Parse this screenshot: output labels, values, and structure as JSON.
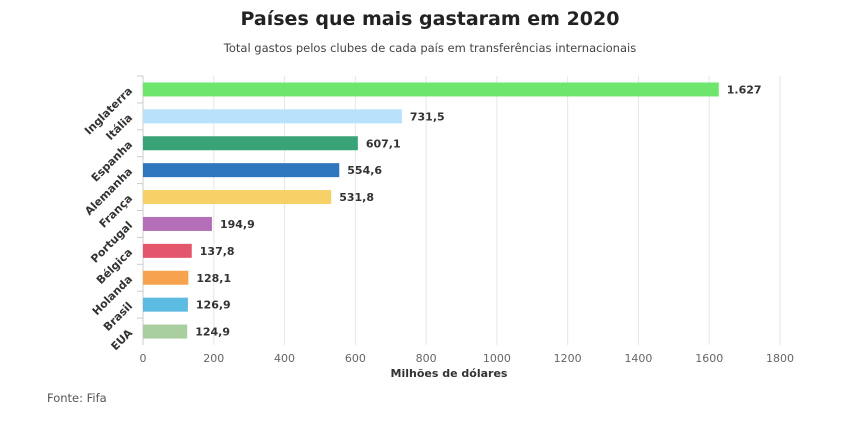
{
  "chart_data": {
    "type": "bar",
    "orientation": "horizontal",
    "title": "Países que mais gastaram em 2020",
    "subtitle": "Total gastos pelos clubes de cada país em transferências internacionais",
    "xlabel": "Milhões de dólares",
    "ylabel": "",
    "xlim": [
      0,
      1800
    ],
    "x_ticks": [
      "0",
      "200",
      "400",
      "600",
      "800",
      "1000",
      "1200",
      "1400",
      "1600",
      "1800"
    ],
    "x_tick_values": [
      0,
      200,
      400,
      600,
      800,
      1000,
      1200,
      1400,
      1600,
      1800
    ],
    "grid": true,
    "categories": [
      "Inglaterra",
      "Itália",
      "Espanha",
      "Alemanha",
      "França",
      "Portugal",
      "Bélgica",
      "Holanda",
      "Brasil",
      "EUA"
    ],
    "values": [
      1627,
      731.5,
      607.1,
      554.6,
      531.8,
      194.9,
      137.8,
      128.1,
      126.9,
      124.9
    ],
    "value_labels": [
      "1.627",
      "731,5",
      "607,1",
      "554,6",
      "531,8",
      "194,9",
      "137,8",
      "128,1",
      "126,9",
      "124,9"
    ],
    "colors": [
      "#6ee66e",
      "#b8e2fb",
      "#3aa277",
      "#2e77bf",
      "#f5d168",
      "#b46fb8",
      "#e4566b",
      "#f7a24f",
      "#5bbbe0",
      "#a9cfa0"
    ]
  },
  "source": "Fonte: Fifa"
}
